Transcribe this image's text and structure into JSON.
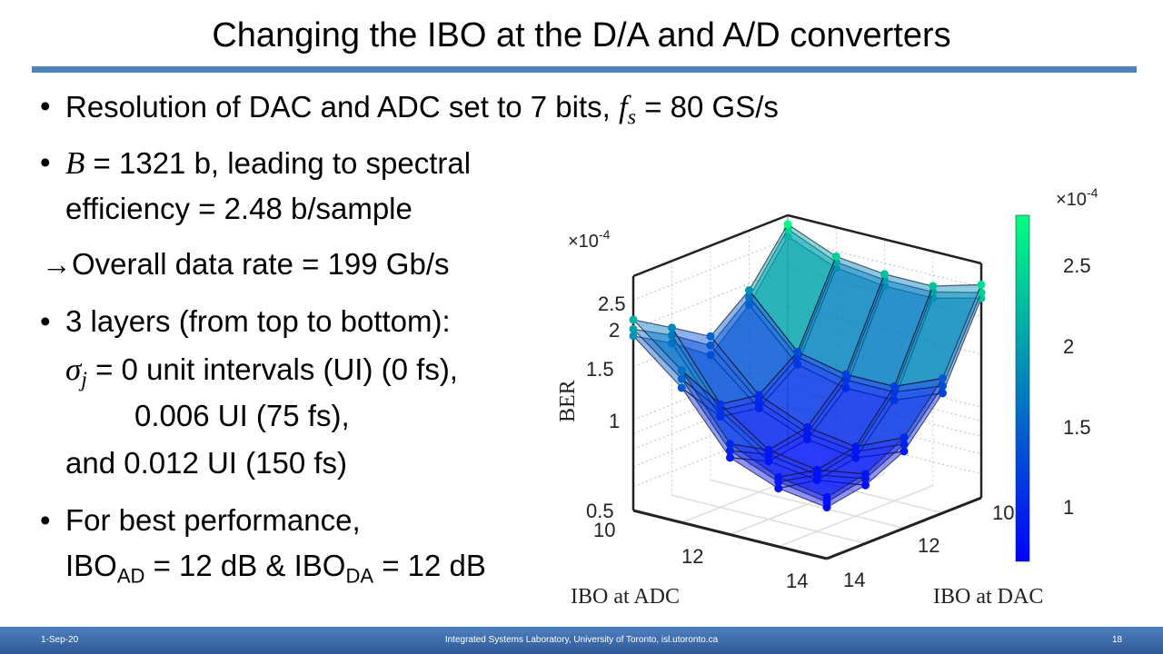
{
  "title": "Changing the IBO at the D/A and A/D converters",
  "bullets": {
    "b1_text": "Resolution of DAC and ADC set to 7 bits, ",
    "b1_var": "f",
    "b1_sub": "s",
    "b1_tail": " = 80 GS/s",
    "b2_var": "B",
    "b2_text": " = 1321 b, leading to spectral",
    "b2_line2": "efficiency = 2.48 b/sample",
    "arrow_line": "→Overall data rate = 199 Gb/s",
    "b3_text": "3 layers (from top to bottom):",
    "b3_var": "σ",
    "b3_sub": "j",
    "b3_line2": " = 0 unit intervals (UI) (0 fs),",
    "b3_line3": "0.006 UI (75 fs),",
    "b3_line4": "and 0.012 UI (150 fs)",
    "b4_text": "For best performance,",
    "b4_ibo1": "IBO",
    "b4_sub1": "AD",
    "b4_mid": " = 12 dB & IBO",
    "b4_sub2": "DA",
    "b4_tail": " = 12 dB",
    "bullet_char": "•"
  },
  "footer": {
    "date": "1-Sep-20",
    "center": "Integrated Systems Laboratory, University of Toronto, isl.utoronto.ca",
    "page": "18"
  },
  "colors": {
    "rule": "#4f81bd",
    "footer": "#3a6aac",
    "cmap_low": "#0000ff",
    "cmap_high": "#00ff80"
  },
  "chart_data": {
    "type": "surface3d",
    "xlabel": "IBO at ADC",
    "ylabel": "IBO at DAC",
    "zlabel": "BER",
    "z_exponent_label": "×10",
    "z_exponent": "-4",
    "z_scale": "log",
    "x_ticks": [
      "10",
      "12",
      "14"
    ],
    "y_ticks": [
      "10",
      "12",
      "14"
    ],
    "z_ticks": [
      "0.5",
      "1",
      "1.5",
      "2",
      "2.5"
    ],
    "colorbar_ticks": [
      "1",
      "1.5",
      "2",
      "2.5"
    ],
    "colorbar_range": [
      0.66,
      2.81
    ],
    "colormap": "winter",
    "x": [
      10,
      11,
      12,
      13,
      14
    ],
    "y": [
      10,
      11,
      12,
      13,
      14
    ],
    "zlim": [
      0.5,
      3
    ],
    "grid": true,
    "layers": [
      {
        "z": [
          [
            2.8,
            1.9,
            1.5,
            1.8,
            2.15
          ],
          [
            2.4,
            1.3,
            1.05,
            1.1,
            1.6
          ],
          [
            2.3,
            1.2,
            0.9,
            0.85,
            1.0
          ],
          [
            2.3,
            1.2,
            0.85,
            0.8,
            0.85
          ],
          [
            2.55,
            1.4,
            1.0,
            0.85,
            0.8
          ]
        ]
      },
      {
        "z": [
          [
            2.7,
            1.8,
            1.4,
            1.7,
            2.0
          ],
          [
            2.3,
            1.25,
            1.0,
            1.05,
            1.5
          ],
          [
            2.2,
            1.15,
            0.86,
            0.82,
            0.95
          ],
          [
            2.2,
            1.15,
            0.82,
            0.77,
            0.82
          ],
          [
            2.4,
            1.32,
            0.95,
            0.82,
            0.77
          ]
        ]
      },
      {
        "z": [
          [
            2.55,
            1.7,
            1.3,
            1.6,
            1.9
          ],
          [
            2.2,
            1.18,
            0.95,
            1.0,
            1.4
          ],
          [
            2.1,
            1.08,
            0.82,
            0.78,
            0.9
          ],
          [
            2.1,
            1.08,
            0.78,
            0.74,
            0.78
          ],
          [
            2.3,
            1.25,
            0.9,
            0.78,
            0.74
          ]
        ]
      }
    ]
  }
}
